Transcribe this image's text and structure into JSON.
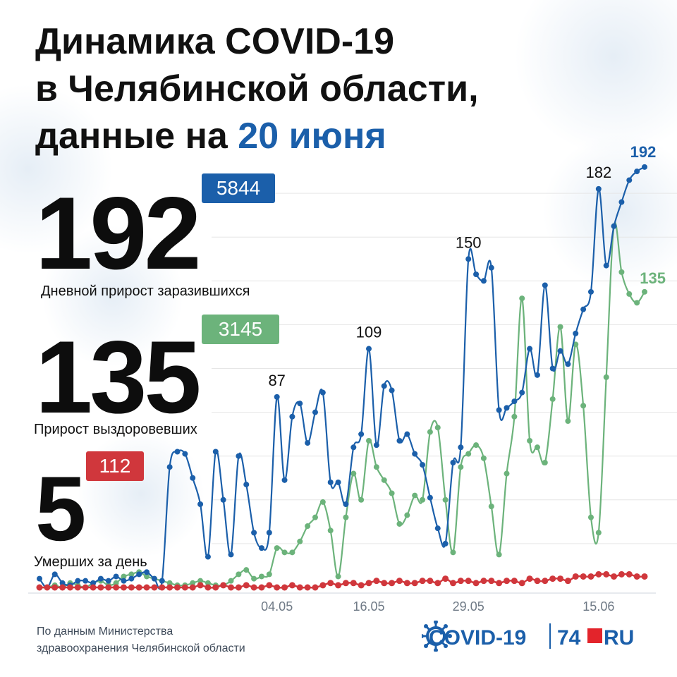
{
  "header": {
    "title_line1": "Динамика COVID-19",
    "title_line2": "в Челябинской области,",
    "title_line3_prefix": "данные на ",
    "title_line3_date": "20 июня"
  },
  "stats": {
    "infected": {
      "value": "192",
      "total": "5844",
      "label": "Дневной прирост заразившихся"
    },
    "recovered": {
      "value": "135",
      "total": "3145",
      "label": "Прирост выздоровевших"
    },
    "deaths": {
      "value": "5",
      "total": "112",
      "label": "Умерших за день"
    }
  },
  "footer": {
    "source_line1": "По данным Министерства",
    "source_line2": "здравоохранения Челябинской области"
  },
  "logo": {
    "covid": "COVID-19",
    "num": "74",
    "ru": "RU"
  },
  "colors": {
    "infected": "#1b5faa",
    "recovered": "#6cb37b",
    "deaths": "#d0373c",
    "grid": "#e6e6e6",
    "accent": "#1b5faa"
  },
  "chart_data": {
    "type": "line",
    "title": "",
    "xlabel": "",
    "ylabel": "",
    "ylim": [
      0,
      200
    ],
    "grid": true,
    "legend": "none",
    "x_tick_labels": [
      "04.05",
      "16.05",
      "29.05",
      "15.06"
    ],
    "x_tick_index": [
      31,
      43,
      56,
      73
    ],
    "annotations": [
      {
        "series": "infected",
        "index": 31,
        "text": "87"
      },
      {
        "series": "infected",
        "index": 43,
        "text": "109"
      },
      {
        "series": "infected",
        "index": 56,
        "text": "150"
      },
      {
        "series": "infected",
        "index": 73,
        "text": "182"
      },
      {
        "series": "infected",
        "index": 79,
        "text": "192"
      },
      {
        "series": "recovered",
        "index": 79,
        "text": "135"
      }
    ],
    "series": [
      {
        "key": "infected",
        "values": [
          4,
          0,
          6,
          2,
          1,
          3,
          3,
          2,
          4,
          3,
          5,
          3,
          4,
          6,
          7,
          4,
          3,
          55,
          62,
          61,
          50,
          38,
          14,
          62,
          40,
          15,
          60,
          47,
          25,
          18,
          25,
          87,
          49,
          78,
          84,
          66,
          80,
          89,
          48,
          48,
          38,
          64,
          70,
          109,
          65,
          92,
          90,
          67,
          70,
          61,
          56,
          41,
          27,
          20,
          57,
          64,
          150,
          143,
          140,
          146,
          81,
          82,
          85,
          89,
          109,
          97,
          138,
          100,
          108,
          102,
          116,
          127,
          135,
          182,
          147,
          165,
          176,
          186,
          190,
          192
        ]
      },
      {
        "key": "recovered",
        "values": [
          0,
          0,
          1,
          0,
          2,
          1,
          0,
          2,
          3,
          1,
          2,
          5,
          6,
          7,
          5,
          4,
          3,
          2,
          1,
          1,
          2,
          3,
          2,
          1,
          1,
          3,
          6,
          8,
          4,
          5,
          6,
          18,
          16,
          16,
          21,
          28,
          32,
          39,
          26,
          5,
          32,
          52,
          40,
          67,
          55,
          49,
          43,
          29,
          33,
          42,
          40,
          71,
          73,
          40,
          16,
          55,
          61,
          65,
          59,
          37,
          15,
          52,
          78,
          132,
          67,
          64,
          57,
          86,
          119,
          76,
          111,
          83,
          32,
          25,
          96,
          165,
          144,
          134,
          130,
          135
        ]
      },
      {
        "key": "deaths",
        "values": [
          0,
          0,
          0,
          0,
          0,
          0,
          0,
          0,
          0,
          0,
          0,
          0,
          0,
          0,
          0,
          0,
          0,
          0,
          0,
          0,
          0,
          1,
          0,
          0,
          1,
          0,
          0,
          1,
          0,
          0,
          1,
          0,
          0,
          1,
          0,
          0,
          0,
          1,
          2,
          1,
          2,
          2,
          1,
          2,
          3,
          2,
          2,
          3,
          2,
          2,
          3,
          3,
          2,
          4,
          2,
          3,
          3,
          2,
          3,
          3,
          2,
          3,
          3,
          2,
          4,
          3,
          3,
          4,
          4,
          3,
          5,
          5,
          5,
          6,
          6,
          5,
          6,
          6,
          5,
          5
        ]
      }
    ]
  }
}
